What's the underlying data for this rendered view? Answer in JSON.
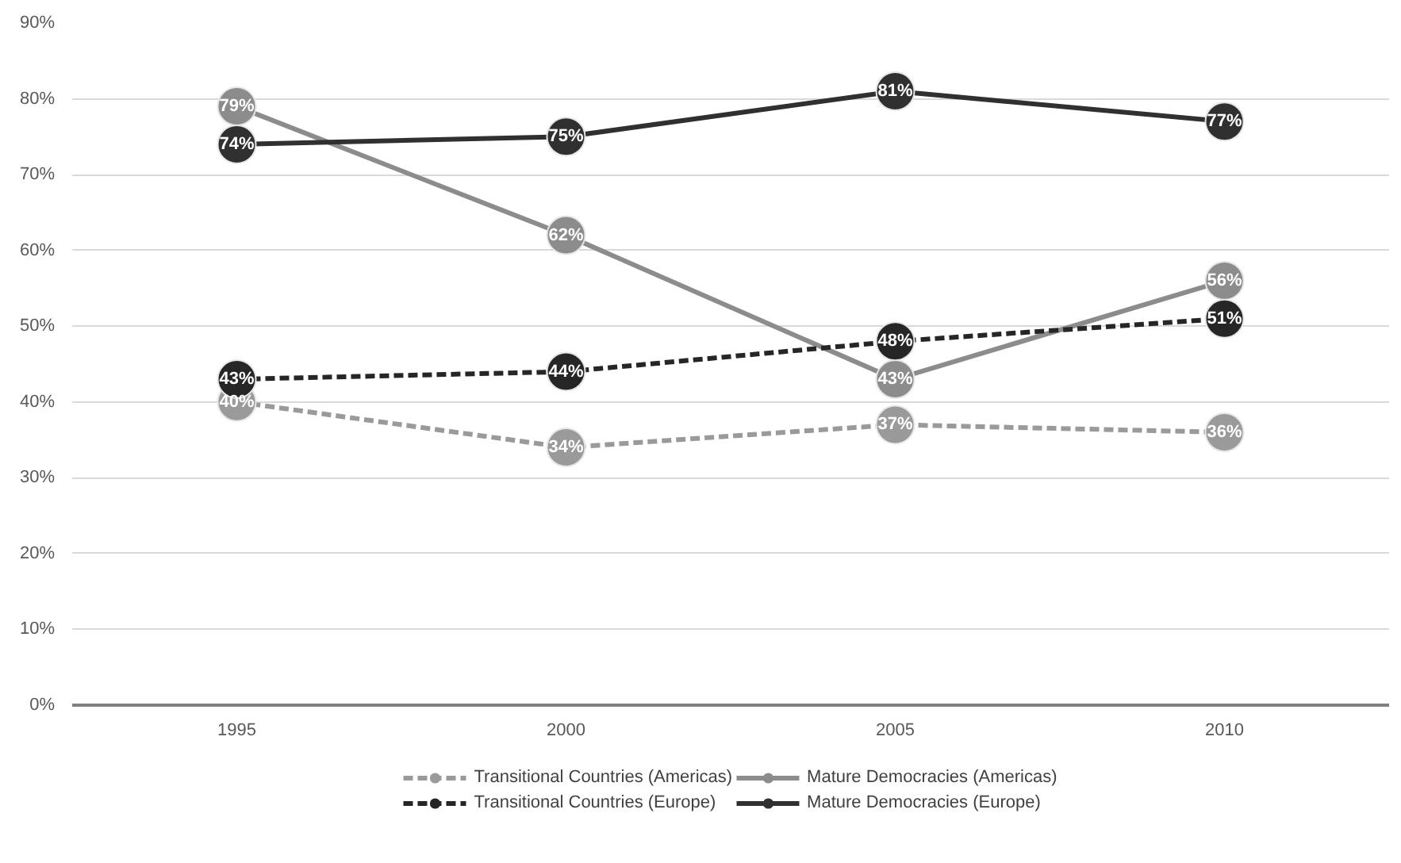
{
  "chart_data": {
    "type": "line",
    "categories": [
      "1995",
      "2000",
      "2005",
      "2010"
    ],
    "ylim": [
      0,
      90
    ],
    "yticks": [
      {
        "value": 0,
        "label": "0%"
      },
      {
        "value": 10,
        "label": "10%"
      },
      {
        "value": 20,
        "label": "20%"
      },
      {
        "value": 30,
        "label": "30%"
      },
      {
        "value": 40,
        "label": "40%"
      },
      {
        "value": 50,
        "label": "50%"
      },
      {
        "value": 60,
        "label": "60%"
      },
      {
        "value": 70,
        "label": "70%"
      },
      {
        "value": 80,
        "label": "80%"
      },
      {
        "value": 90,
        "label": "90%"
      }
    ],
    "grid": "y",
    "legend": "bottom",
    "marker": "circle",
    "data_labels": true,
    "series": [
      {
        "name": "Transitional Countries (Americas)",
        "color": "#9a9a9a",
        "line_style": "dashed",
        "values": [
          40,
          34,
          37,
          36
        ],
        "value_labels": [
          "40%",
          "34%",
          "37%",
          "36%"
        ]
      },
      {
        "name": "Mature Democracies (Americas)",
        "color": "#8c8c8c",
        "line_style": "solid",
        "values": [
          79,
          62,
          43,
          56
        ],
        "value_labels": [
          "79%",
          "62%",
          "43%",
          "56%"
        ]
      },
      {
        "name": "Transitional Countries (Europe)",
        "color": "#262626",
        "line_style": "dashed",
        "values": [
          43,
          44,
          48,
          51
        ],
        "value_labels": [
          "43%",
          "44%",
          "48%",
          "51%"
        ]
      },
      {
        "name": "Mature Democracies (Europe)",
        "color": "#303030",
        "line_style": "solid",
        "values": [
          74,
          75,
          81,
          77
        ],
        "value_labels": [
          "74%",
          "75%",
          "81%",
          "77%"
        ]
      }
    ]
  }
}
